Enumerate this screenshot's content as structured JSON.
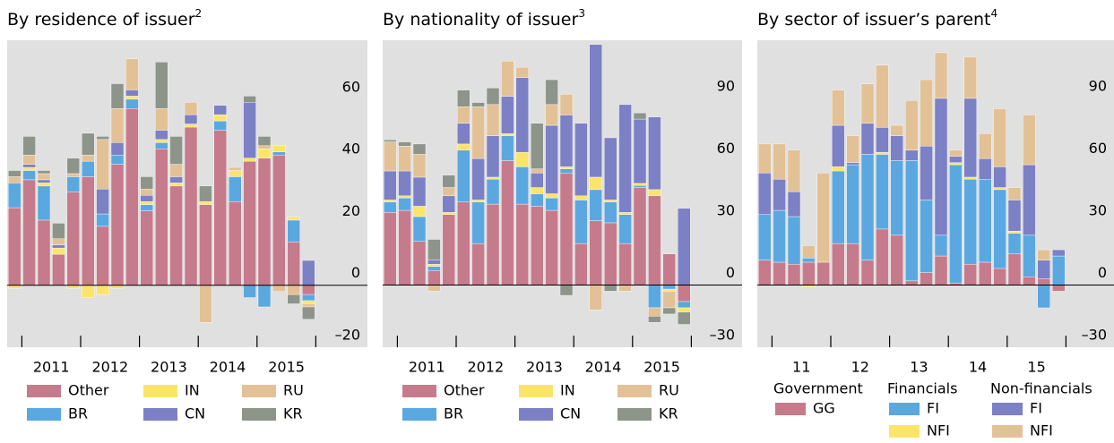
{
  "chart_data": [
    {
      "type": "bar",
      "stacked": true,
      "title": "By residence of issuer",
      "title_note": "2",
      "categories": [
        null,
        null,
        null,
        null,
        null,
        null,
        null,
        null,
        null,
        null,
        null,
        null,
        null,
        null,
        null,
        null,
        null,
        null,
        null,
        null,
        null
      ],
      "group_labels": [
        "2011",
        "2012",
        "2013",
        "2014",
        "2015"
      ],
      "ylim": [
        -20,
        79
      ],
      "yticks": [
        {
          "value": -20,
          "label": "–20"
        },
        0,
        20,
        40,
        60
      ],
      "grid": false,
      "series": [
        {
          "name": "Other",
          "color": "#c57b8b",
          "values": [
            25,
            34,
            21,
            10,
            30,
            35,
            19,
            39,
            57,
            24,
            44,
            32,
            51,
            26,
            50,
            27,
            40,
            41,
            42,
            14,
            -3
          ]
        },
        {
          "name": "BR",
          "color": "#5ba8e1",
          "values": [
            8,
            3,
            11,
            0,
            5,
            5,
            4,
            3,
            3,
            2,
            2,
            0,
            0,
            0,
            3,
            8,
            -4,
            -7,
            1,
            7,
            -2
          ]
        },
        {
          "name": "IN",
          "color": "#fbe46a",
          "values": [
            -1,
            1,
            1,
            2,
            -1,
            -4,
            -3,
            -1,
            1,
            1,
            1,
            1,
            1,
            1,
            2,
            2,
            1,
            3,
            2,
            1,
            -1
          ]
        },
        {
          "name": "CN",
          "color": "#7c80c5",
          "values": [
            0,
            1,
            1,
            1,
            0,
            0,
            8,
            4,
            2,
            2,
            3,
            2,
            3,
            0,
            3,
            0,
            18,
            0,
            0,
            0,
            8
          ]
        },
        {
          "name": "RU",
          "color": "#e3c196",
          "values": [
            2,
            3,
            2,
            2,
            1,
            2,
            16,
            11,
            10,
            2,
            7,
            4,
            4,
            -12,
            0,
            1,
            0,
            1,
            -2,
            -3,
            -1
          ]
        },
        {
          "name": "KR",
          "color": "#8d958b",
          "values": [
            2,
            6,
            1,
            5,
            5,
            7,
            1,
            8,
            0,
            4,
            15,
            9,
            0,
            5,
            0,
            0,
            2,
            3,
            0,
            -3,
            -4
          ]
        }
      ]
    },
    {
      "type": "bar",
      "stacked": true,
      "title": "By nationality of issuer",
      "title_note": "3",
      "categories": [
        null,
        null,
        null,
        null,
        null,
        null,
        null,
        null,
        null,
        null,
        null,
        null,
        null,
        null,
        null,
        null,
        null,
        null,
        null,
        null,
        null
      ],
      "group_labels": [
        "2011",
        "2012",
        "2013",
        "2014",
        "2015"
      ],
      "ylim": [
        -30,
        118
      ],
      "yticks": [
        {
          "value": -30,
          "label": "–30"
        },
        0,
        30,
        60,
        90
      ],
      "grid": false,
      "series": [
        {
          "name": "Other",
          "color": "#c57b8b",
          "values": [
            35,
            36,
            21,
            7,
            34,
            40,
            20,
            39,
            60,
            39,
            38,
            36,
            54,
            20,
            31,
            30,
            20,
            47,
            43,
            15,
            -8
          ]
        },
        {
          "name": "BR",
          "color": "#5ba8e1",
          "values": [
            5,
            6,
            12,
            2,
            0,
            25,
            20,
            12,
            12,
            18,
            6,
            6,
            2,
            21,
            15,
            10,
            14,
            1,
            -11,
            -2,
            -3
          ]
        },
        {
          "name": "IN",
          "color": "#fbe46a",
          "values": [
            1,
            1,
            5,
            1,
            1,
            3,
            1,
            1,
            1,
            7,
            3,
            2,
            1,
            2,
            6,
            1,
            1,
            1,
            3,
            -1,
            -2
          ]
        },
        {
          "name": "CN",
          "color": "#7c80c5",
          "values": [
            14,
            12,
            14,
            2,
            8,
            10,
            20,
            20,
            18,
            36,
            7,
            33,
            25,
            35,
            64,
            30,
            52,
            31,
            35,
            0,
            37
          ]
        },
        {
          "name": "RU",
          "color": "#e3c196",
          "values": [
            14,
            12,
            11,
            -3,
            4,
            8,
            25,
            15,
            17,
            5,
            2,
            10,
            10,
            0,
            -12,
            0,
            -3,
            0,
            -4,
            -8,
            0
          ]
        },
        {
          "name": "KR",
          "color": "#8d958b",
          "values": [
            1,
            2,
            5,
            10,
            6,
            8,
            2,
            8,
            0,
            0,
            22,
            12,
            -5,
            0,
            0,
            -3,
            0,
            3,
            -3,
            -3,
            -6
          ]
        }
      ]
    },
    {
      "type": "bar",
      "stacked": true,
      "title": "By sector of issuer’s parent",
      "title_note": "4",
      "categories": [
        null,
        null,
        null,
        null,
        null,
        null,
        null,
        null,
        null,
        null,
        null,
        null,
        null,
        null,
        null,
        null,
        null,
        null,
        null,
        null,
        null
      ],
      "group_labels": [
        "11",
        "12",
        "13",
        "14",
        "15"
      ],
      "ylim": [
        -30,
        118
      ],
      "yticks": [
        {
          "value": -30,
          "label": "–30"
        },
        0,
        30,
        60,
        90
      ],
      "grid": false,
      "legend_groups": [
        {
          "title": "Government",
          "series": [
            0
          ]
        },
        {
          "title": "Financials",
          "series": [
            1,
            2
          ]
        },
        {
          "title": "Non-financials",
          "series": [
            3,
            4
          ]
        }
      ],
      "series": [
        {
          "name": "GG",
          "color": "#c57b8b",
          "values": [
            12,
            11,
            10,
            11,
            11,
            20,
            20,
            12,
            27,
            24,
            2,
            6,
            14,
            1,
            10,
            11,
            8,
            15,
            4,
            3,
            -3
          ]
        },
        {
          "name": "FI",
          "color": "#5ba8e1",
          "values": [
            22,
            25,
            23,
            2,
            0,
            35,
            38,
            51,
            36,
            36,
            58,
            35,
            10,
            57,
            41,
            40,
            38,
            10,
            20,
            -11,
            14
          ]
        },
        {
          "name": "NFI",
          "color": "#fbe46a",
          "values": [
            0,
            0,
            0,
            -1,
            0,
            2,
            0,
            0,
            1,
            0,
            0,
            0,
            0,
            1,
            1,
            0,
            1,
            1,
            0,
            0,
            0
          ]
        },
        {
          "name": "FI",
          "color": "#7c80c5",
          "values": [
            20,
            15,
            12,
            0,
            0,
            20,
            1,
            15,
            12,
            12,
            5,
            26,
            66,
            3,
            38,
            10,
            10,
            15,
            34,
            9,
            3
          ]
        },
        {
          "name": "NFI",
          "color": "#e3c196",
          "values": [
            14,
            17,
            20,
            6,
            43,
            17,
            13,
            19,
            30,
            5,
            24,
            32,
            22,
            3,
            20,
            12,
            28,
            6,
            24,
            5,
            0
          ]
        }
      ]
    }
  ]
}
